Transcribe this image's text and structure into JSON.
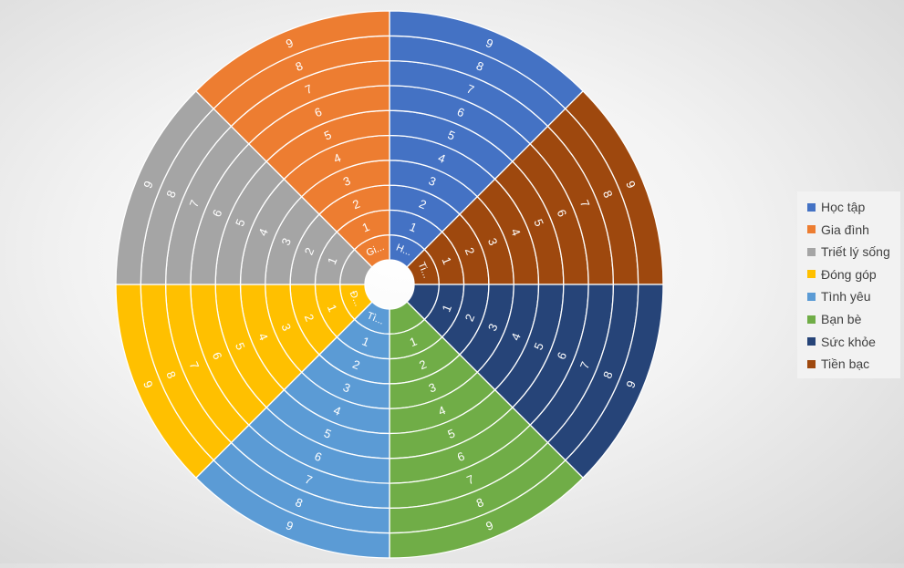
{
  "chart_data": {
    "type": "donut",
    "title": "",
    "rings": [
      "",
      "1",
      "2",
      "3",
      "4",
      "5",
      "6",
      "7",
      "8",
      "9"
    ],
    "series": [
      {
        "name": "Học tập",
        "color": "#4472C4",
        "inner_label": "H..."
      },
      {
        "name": "Tiền bạc",
        "color": "#9E480E",
        "inner_label": "Ti..."
      },
      {
        "name": "Sức khỏe",
        "color": "#264478",
        "inner_label": ""
      },
      {
        "name": "Bạn bè",
        "color": "#70AD47",
        "inner_label": ""
      },
      {
        "name": "Tình yêu",
        "color": "#5B9BD5",
        "inner_label": "Tì..."
      },
      {
        "name": "Đóng góp",
        "color": "#FFC000",
        "inner_label": "Đ..."
      },
      {
        "name": "Triết lý sống",
        "color": "#A5A5A5",
        "inner_label": ""
      },
      {
        "name": "Gia đình",
        "color": "#ED7D31",
        "inner_label": "Gi..."
      }
    ],
    "values_per_ring": [
      1,
      1,
      1,
      1,
      1,
      1,
      1,
      1
    ],
    "legend": {
      "position": "right",
      "entries": [
        "Học tập",
        "Gia đình",
        "Triết lý sống",
        "Đóng góp",
        "Tình yêu",
        "Bạn bè",
        "Sức khỏe",
        "Tiền bạc"
      ],
      "colors": [
        "#4472C4",
        "#ED7D31",
        "#A5A5A5",
        "#FFC000",
        "#5B9BD5",
        "#70AD47",
        "#264478",
        "#9E480E"
      ]
    }
  }
}
